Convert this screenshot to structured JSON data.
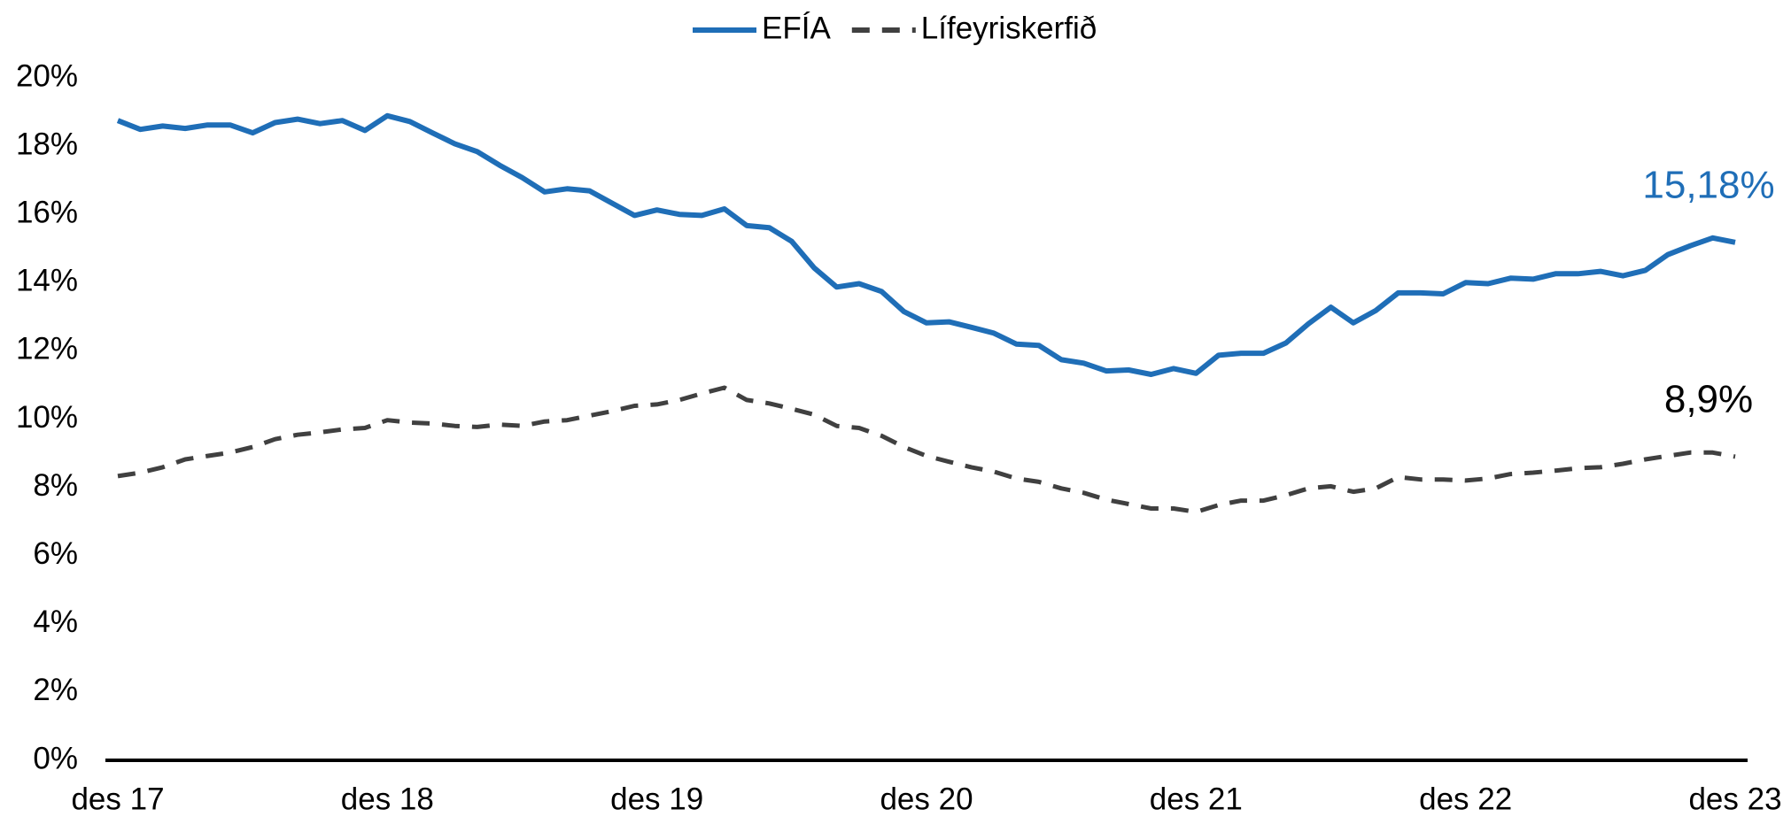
{
  "chart_data": {
    "type": "line",
    "categories": [
      "des 17",
      null,
      null,
      null,
      null,
      null,
      null,
      null,
      null,
      null,
      null,
      null,
      "des 18",
      null,
      null,
      null,
      null,
      null,
      null,
      null,
      null,
      null,
      null,
      null,
      "des 19",
      null,
      null,
      null,
      null,
      null,
      null,
      null,
      null,
      null,
      null,
      null,
      "des 20",
      null,
      null,
      null,
      null,
      null,
      null,
      null,
      null,
      null,
      null,
      null,
      "des 21",
      null,
      null,
      null,
      null,
      null,
      null,
      null,
      null,
      null,
      null,
      null,
      "des 22",
      null,
      null,
      null,
      null,
      null,
      null,
      null,
      null,
      null,
      null,
      null,
      "des 23"
    ],
    "series": [
      {
        "name": "EFÍA",
        "color": "#1f6eb7",
        "dash": false,
        "values": [
          18.75,
          18.49,
          18.59,
          18.52,
          18.62,
          18.62,
          18.39,
          18.69,
          18.79,
          18.66,
          18.75,
          18.46,
          18.89,
          18.72,
          18.39,
          18.07,
          17.84,
          17.44,
          17.08,
          16.66,
          16.75,
          16.69,
          16.33,
          15.97,
          16.13,
          16.0,
          15.97,
          16.16,
          15.67,
          15.61,
          15.21,
          14.43,
          13.87,
          13.97,
          13.74,
          13.15,
          12.82,
          12.85,
          12.69,
          12.52,
          12.2,
          12.16,
          11.74,
          11.64,
          11.41,
          11.44,
          11.31,
          11.48,
          11.34,
          11.87,
          11.93,
          11.93,
          12.23,
          12.79,
          13.28,
          12.82,
          13.18,
          13.7,
          13.7,
          13.67,
          14.0,
          13.97,
          14.13,
          14.1,
          14.26,
          14.26,
          14.33,
          14.2,
          14.36,
          14.82,
          15.08,
          15.31,
          15.18
        ],
        "value_labels": [
          null,
          null,
          null,
          null,
          null,
          null,
          null,
          null,
          null,
          null,
          null,
          null,
          null,
          null,
          null,
          null,
          null,
          null,
          null,
          null,
          null,
          null,
          null,
          null,
          null,
          null,
          null,
          null,
          null,
          null,
          null,
          null,
          null,
          null,
          null,
          null,
          null,
          null,
          null,
          null,
          null,
          null,
          null,
          null,
          null,
          null,
          null,
          null,
          null,
          null,
          null,
          null,
          null,
          null,
          null,
          null,
          null,
          null,
          null,
          null,
          null,
          null,
          null,
          null,
          null,
          null,
          null,
          null,
          null,
          null,
          null,
          null,
          "15,18%"
        ]
      },
      {
        "name": "Lífeyriskerfið",
        "color": "#404040",
        "dash": true,
        "values": [
          8.33,
          8.43,
          8.59,
          8.82,
          8.92,
          9.02,
          9.18,
          9.41,
          9.54,
          9.61,
          9.7,
          9.74,
          9.97,
          9.9,
          9.87,
          9.8,
          9.77,
          9.84,
          9.8,
          9.93,
          9.97,
          10.1,
          10.23,
          10.39,
          10.43,
          10.56,
          10.75,
          10.92,
          10.56,
          10.46,
          10.3,
          10.13,
          9.8,
          9.74,
          9.51,
          9.18,
          8.92,
          8.75,
          8.59,
          8.46,
          8.26,
          8.16,
          7.97,
          7.84,
          7.64,
          7.51,
          7.38,
          7.38,
          7.28,
          7.48,
          7.61,
          7.61,
          7.77,
          7.97,
          8.03,
          7.87,
          7.97,
          8.3,
          8.23,
          8.23,
          8.2,
          8.26,
          8.39,
          8.43,
          8.49,
          8.56,
          8.59,
          8.69,
          8.82,
          8.92,
          9.02,
          9.02,
          8.9
        ],
        "value_labels": [
          null,
          null,
          null,
          null,
          null,
          null,
          null,
          null,
          null,
          null,
          null,
          null,
          null,
          null,
          null,
          null,
          null,
          null,
          null,
          null,
          null,
          null,
          null,
          null,
          null,
          null,
          null,
          null,
          null,
          null,
          null,
          null,
          null,
          null,
          null,
          null,
          null,
          null,
          null,
          null,
          null,
          null,
          null,
          null,
          null,
          null,
          null,
          null,
          null,
          null,
          null,
          null,
          null,
          null,
          null,
          null,
          null,
          null,
          null,
          null,
          null,
          null,
          null,
          null,
          null,
          null,
          null,
          null,
          null,
          null,
          null,
          null,
          "8,9%"
        ]
      }
    ],
    "ylim": [
      0,
      20
    ],
    "yticks": [
      {
        "value": 0,
        "label": "0%"
      },
      {
        "value": 2,
        "label": "2%"
      },
      {
        "value": 4,
        "label": "4%"
      },
      {
        "value": 6,
        "label": "6%"
      },
      {
        "value": 8,
        "label": "8%"
      },
      {
        "value": 10,
        "label": "10%"
      },
      {
        "value": 12,
        "label": "12%"
      },
      {
        "value": 14,
        "label": "14%"
      },
      {
        "value": 16,
        "label": "16%"
      },
      {
        "value": 18,
        "label": "18%"
      },
      {
        "value": 20,
        "label": "20%"
      }
    ],
    "grid": false,
    "legend": "top"
  }
}
